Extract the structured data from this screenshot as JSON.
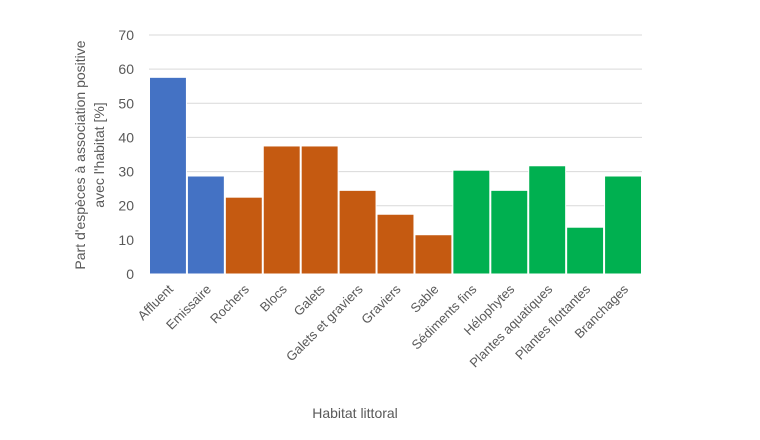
{
  "chart_data": {
    "type": "bar",
    "title": "",
    "xlabel": "Habitat littoral",
    "ylabel_lines": [
      "Part d'espèces à association positive",
      "avec l'habitat [%]"
    ],
    "ylim": [
      0,
      70
    ],
    "yticks": [
      "0",
      "10",
      "20",
      "30",
      "40",
      "50",
      "60",
      "70"
    ],
    "grid": true,
    "categories": [
      "Affluent",
      "Emissaire",
      "Rochers",
      "Blocs",
      "Galets",
      "Galets et graviers",
      "Graviers",
      "Sable",
      "Sédiments fins",
      "Hélophytes",
      "Plantes aquatiques",
      "Plantes flottantes",
      "Branchages"
    ],
    "values": [
      57.6,
      28.7,
      22.5,
      37.5,
      37.5,
      24.5,
      17.5,
      11.5,
      30.4,
      24.5,
      31.7,
      13.7,
      28.7
    ],
    "bar_colors": [
      "#4472C4",
      "#4472C4",
      "#C55A11",
      "#C55A11",
      "#C55A11",
      "#C55A11",
      "#C55A11",
      "#C55A11",
      "#00B050",
      "#00B050",
      "#00B050",
      "#00B050",
      "#00B050"
    ]
  }
}
